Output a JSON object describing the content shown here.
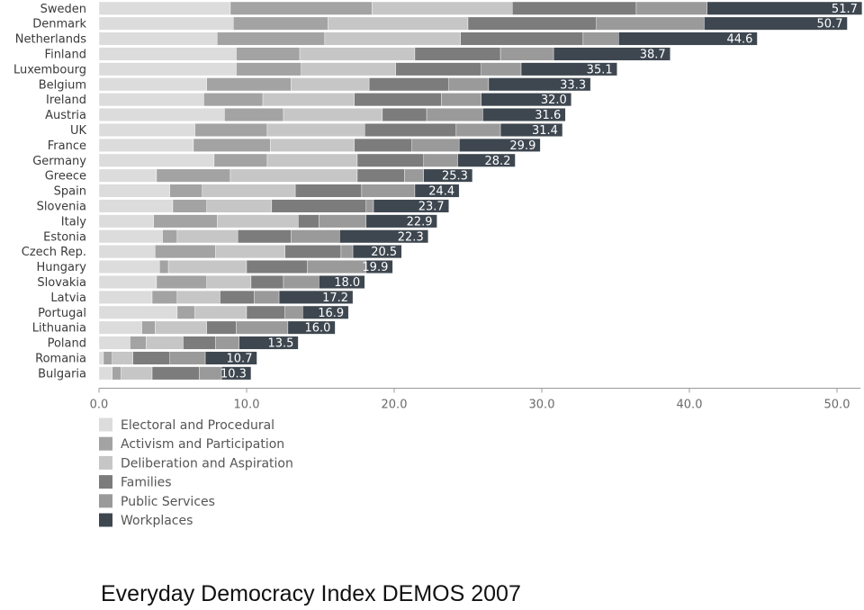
{
  "caption": "Everyday Democracy Index DEMOS 2007",
  "chart_data": {
    "type": "bar",
    "orientation": "horizontal",
    "stacked": true,
    "title": "",
    "xlabel": "",
    "ylabel": "",
    "xlim": [
      0,
      51
    ],
    "xticks": [
      "0.0",
      "10.0",
      "20.0",
      "30.0",
      "40.0",
      "50.0"
    ],
    "grid": false,
    "legend_position": "bottom-left",
    "categories": [
      "Sweden",
      "Denmark",
      "Netherlands",
      "Finland",
      "Luxembourg",
      "Belgium",
      "Ireland",
      "Austria",
      "UK",
      "France",
      "Germany",
      "Greece",
      "Spain",
      "Slovenia",
      "Italy",
      "Estonia",
      "Czech Rep.",
      "Hungary",
      "Slovakia",
      "Latvia",
      "Portugal",
      "Lithuania",
      "Poland",
      "Romania",
      "Bulgaria"
    ],
    "totals": [
      "51.7",
      "50.7",
      "44.6",
      "38.7",
      "35.1",
      "33.3",
      "32.0",
      "31.6",
      "31.4",
      "29.9",
      "28.2",
      "25.3",
      "24.4",
      "23.7",
      "22.9",
      "22.3",
      "20.5",
      "19.9",
      "18.0",
      "17.2",
      "16.9",
      "16.0",
      "13.5",
      "10.7",
      "10.3"
    ],
    "series": [
      {
        "name": "Electoral and Procedural",
        "color": "#dcdcdc",
        "values": [
          8.9,
          9.1,
          8.0,
          9.3,
          9.3,
          7.3,
          7.1,
          8.5,
          6.5,
          6.4,
          7.8,
          3.9,
          4.8,
          5.0,
          3.7,
          4.3,
          3.8,
          4.1,
          3.9,
          3.6,
          5.3,
          2.9,
          2.1,
          0.3,
          0.9
        ]
      },
      {
        "name": "Activism and Participation",
        "color": "#a3a3a3",
        "values": [
          9.6,
          6.4,
          7.3,
          4.3,
          4.4,
          5.7,
          4.0,
          4.0,
          4.9,
          5.2,
          3.6,
          5.0,
          2.2,
          2.3,
          4.3,
          1.0,
          4.1,
          0.6,
          3.4,
          1.7,
          1.2,
          0.9,
          1.1,
          0.6,
          0.6
        ]
      },
      {
        "name": "Deliberation and Aspiration",
        "color": "#c6c6c6",
        "values": [
          9.5,
          9.5,
          9.2,
          7.8,
          6.4,
          5.3,
          6.2,
          6.7,
          6.6,
          5.7,
          6.1,
          8.6,
          6.3,
          4.4,
          5.5,
          4.1,
          4.7,
          5.3,
          3.0,
          2.9,
          3.5,
          3.5,
          2.5,
          1.4,
          2.1
        ]
      },
      {
        "name": "Families",
        "color": "#7c7c7c",
        "values": [
          8.4,
          8.7,
          8.3,
          5.8,
          5.8,
          5.4,
          5.9,
          3.0,
          6.2,
          3.9,
          4.5,
          3.2,
          4.5,
          6.4,
          1.4,
          3.6,
          3.8,
          4.1,
          2.2,
          2.3,
          2.6,
          2.0,
          2.2,
          2.5,
          3.2
        ]
      },
      {
        "name": "Public Services",
        "color": "#9a9a9a",
        "values": [
          4.8,
          7.3,
          2.4,
          3.6,
          2.7,
          2.7,
          2.7,
          3.8,
          3.0,
          3.2,
          2.3,
          1.3,
          3.6,
          0.5,
          3.2,
          3.3,
          0.8,
          4.0,
          2.4,
          1.7,
          1.2,
          3.5,
          1.6,
          2.4,
          1.5
        ]
      },
      {
        "name": "Workplaces",
        "color": "#3e4750",
        "values": [
          10.5,
          9.7,
          9.4,
          7.9,
          6.5,
          6.9,
          6.1,
          5.6,
          4.2,
          5.5,
          3.9,
          3.3,
          3.0,
          5.1,
          4.8,
          6.0,
          3.3,
          1.8,
          3.1,
          5.0,
          3.1,
          3.2,
          4.0,
          3.5,
          2.0
        ]
      }
    ]
  }
}
